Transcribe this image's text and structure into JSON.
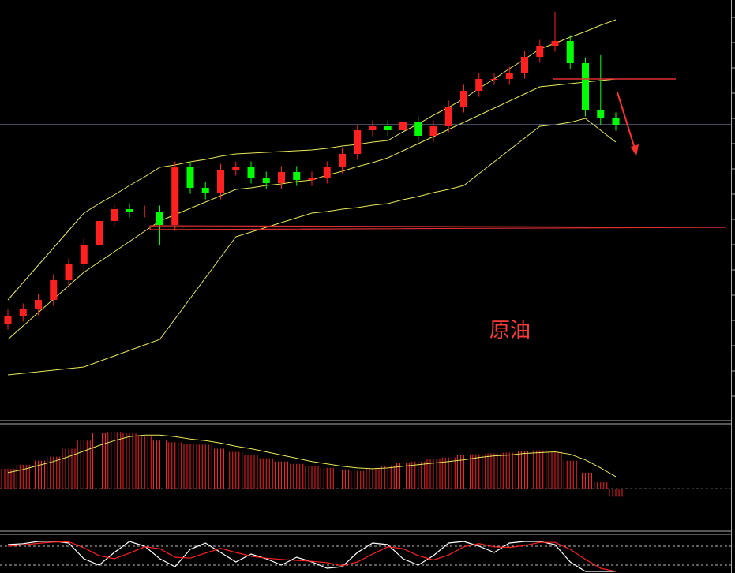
{
  "annotation": "原油",
  "chart_data": [
    {
      "type": "candlestick",
      "ylim": [
        0,
        106
      ],
      "up_color": "#ff2020",
      "down_color": "#00ff00",
      "open": [
        24,
        26,
        27.6,
        30,
        35,
        39,
        44,
        50,
        53,
        52.4,
        52.4,
        49,
        63.6,
        58.4,
        57,
        63,
        63.6,
        61,
        59.6,
        62.4,
        60.4,
        61,
        63.6,
        67,
        73,
        74,
        73,
        75,
        71.6,
        74,
        79,
        83,
        86,
        86,
        87.6,
        91.6,
        94.4,
        95.6,
        90,
        78,
        76
      ],
      "high": [
        27.5,
        29.1,
        31.5,
        36.5,
        40.5,
        45.5,
        51.5,
        54.5,
        54.5,
        53.9,
        53.9,
        65.1,
        65.1,
        59.9,
        64.5,
        65.1,
        65.1,
        62.5,
        63.9,
        63.9,
        62.5,
        65.1,
        68.5,
        74.5,
        75.5,
        75.5,
        76.5,
        76.5,
        75.5,
        80.5,
        84.5,
        87.5,
        87.5,
        89.1,
        93.1,
        95.9,
        103,
        97.1,
        91.5,
        92,
        77.5
      ],
      "low": [
        22.5,
        24.5,
        26.1,
        28.5,
        33.5,
        37.5,
        42.5,
        48.5,
        50.9,
        50.9,
        44,
        47.5,
        56.9,
        55.5,
        55.5,
        61.5,
        59.5,
        58.1,
        58.1,
        58.9,
        58.9,
        59.5,
        62.1,
        65.5,
        71.5,
        71.5,
        71.5,
        70.1,
        70.1,
        72.5,
        77.5,
        81.5,
        84.5,
        84.5,
        86.1,
        90.1,
        92.9,
        88.5,
        76.5,
        74.5,
        72.9
      ],
      "close": [
        26,
        27.6,
        30,
        35,
        39,
        44,
        50,
        53,
        52.4,
        52.4,
        49,
        63.6,
        58.4,
        57,
        63,
        63.6,
        61,
        59.6,
        62.4,
        60.4,
        61,
        63.6,
        67,
        73,
        74,
        73,
        75,
        71.6,
        74,
        79,
        83,
        86,
        86,
        87.6,
        91.6,
        94.4,
        95.6,
        90,
        78,
        76,
        74.4
      ],
      "series": [
        {
          "color": "#e8e85a",
          "values": [
            30,
            34.4,
            38.8,
            43.2,
            47.6,
            52,
            54.4,
            56.6,
            59,
            61.2,
            63.6,
            64.2,
            65,
            65.6,
            66.4,
            67,
            67.2,
            67.4,
            67.6,
            67.8,
            68,
            68.4,
            69,
            69.4,
            70,
            70.4,
            72.6,
            74.6,
            76.8,
            78.8,
            81,
            83.6,
            86,
            88.6,
            91,
            93.6,
            95,
            96.6,
            98,
            99.6,
            101
          ]
        },
        {
          "color": "#e8e85a",
          "values": [
            20,
            23.4,
            26.8,
            30.2,
            33.6,
            37,
            39.6,
            42.2,
            44.8,
            47.4,
            50,
            51.6,
            53.2,
            54.8,
            56.4,
            58,
            58.4,
            59,
            59.4,
            60,
            60.4,
            61.6,
            62.6,
            63.8,
            64.8,
            66,
            67.8,
            69.6,
            71.4,
            73.2,
            75,
            76.8,
            78.6,
            80.4,
            82.2,
            84,
            84.4,
            84.8,
            85.2,
            85.6,
            86
          ]
        },
        {
          "color": "#e8e85a",
          "values": [
            11,
            11.4,
            11.8,
            12.2,
            12.6,
            13,
            14.4,
            15.8,
            17.2,
            18.6,
            20,
            25.2,
            30.4,
            35.6,
            40.8,
            46,
            47.2,
            48.4,
            49.6,
            50.8,
            52,
            52.4,
            53,
            53.4,
            54,
            54.4,
            55.4,
            56.2,
            57.2,
            58,
            59,
            62,
            65,
            68,
            71,
            74,
            74.4,
            75,
            76,
            73,
            70
          ]
        }
      ]
    },
    {
      "type": "macd",
      "ylim": [
        -5.2,
        8
      ],
      "color": "#ff2020",
      "values": [
        2.5,
        3,
        3.5,
        4,
        5,
        6,
        7,
        7.1,
        7,
        6.5,
        6,
        5.8,
        5.6,
        5.5,
        5,
        4.6,
        4.2,
        3.8,
        3.4,
        3.1,
        2.8,
        2.6,
        2.4,
        2.2,
        2.5,
        2.9,
        3.2,
        3.4,
        3.7,
        3.9,
        4.2,
        4.3,
        4.4,
        4.5,
        4.7,
        4.8,
        4.6,
        3.5,
        2,
        0.8,
        -1
      ],
      "series": [
        {
          "color": "#e8e85a",
          "values": [
            2,
            2.4,
            2.9,
            3.4,
            4,
            4.7,
            5.4,
            6,
            6.5,
            6.7,
            6.7,
            6.5,
            6.2,
            6,
            5.7,
            5.3,
            5,
            4.6,
            4.2,
            3.8,
            3.4,
            3.1,
            2.8,
            2.6,
            2.5,
            2.6,
            2.8,
            3,
            3.2,
            3.4,
            3.6,
            3.9,
            4.1,
            4.2,
            4.4,
            4.5,
            4.6,
            4.3,
            3.6,
            2.6,
            1.5
          ]
        }
      ]
    },
    {
      "type": "stochastic",
      "ylim": [
        0,
        100
      ],
      "levels": [
        20,
        80
      ],
      "series": [
        {
          "color": "#ffffff",
          "values": [
            85,
            88,
            95,
            96,
            90,
            40,
            20,
            60,
            95,
            80,
            40,
            15,
            70,
            90,
            60,
            30,
            55,
            40,
            20,
            45,
            30,
            10,
            15,
            60,
            90,
            85,
            40,
            20,
            50,
            90,
            95,
            80,
            60,
            90,
            95,
            95,
            85,
            30,
            0,
            0,
            0
          ]
        },
        {
          "color": "#ff2020",
          "values": [
            80,
            84,
            89,
            93,
            94,
            75,
            50,
            40,
            58,
            78,
            72,
            45,
            42,
            58,
            73,
            60,
            48,
            42,
            38,
            35,
            32,
            28,
            18,
            30,
            55,
            78,
            72,
            50,
            36,
            52,
            78,
            88,
            78,
            76,
            82,
            92,
            92,
            70,
            38,
            10,
            0
          ]
        }
      ]
    }
  ]
}
